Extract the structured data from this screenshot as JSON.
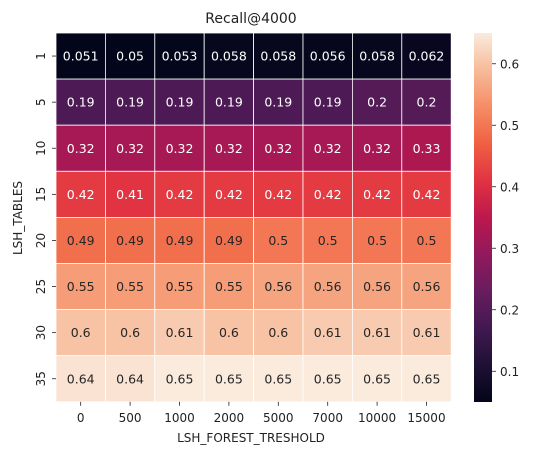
{
  "chart_data": {
    "type": "heatmap",
    "title": "Recall@4000",
    "xlabel": "LSH_FOREST_TRESHOLD",
    "ylabel": "LSH_TABLES",
    "x": [
      "0",
      "500",
      "1000",
      "2000",
      "5000",
      "7000",
      "10000",
      "15000"
    ],
    "y": [
      "1",
      "5",
      "10",
      "15",
      "20",
      "25",
      "30",
      "35"
    ],
    "values": [
      [
        0.051,
        0.05,
        0.053,
        0.058,
        0.058,
        0.056,
        0.058,
        0.062
      ],
      [
        0.19,
        0.19,
        0.19,
        0.19,
        0.19,
        0.19,
        0.2,
        0.2
      ],
      [
        0.32,
        0.32,
        0.32,
        0.32,
        0.32,
        0.32,
        0.32,
        0.33
      ],
      [
        0.42,
        0.41,
        0.42,
        0.42,
        0.42,
        0.42,
        0.42,
        0.42
      ],
      [
        0.49,
        0.49,
        0.49,
        0.49,
        0.5,
        0.5,
        0.5,
        0.5
      ],
      [
        0.55,
        0.55,
        0.55,
        0.55,
        0.56,
        0.56,
        0.56,
        0.56
      ],
      [
        0.6,
        0.6,
        0.61,
        0.6,
        0.6,
        0.61,
        0.61,
        0.61
      ],
      [
        0.64,
        0.64,
        0.65,
        0.65,
        0.65,
        0.65,
        0.65,
        0.65
      ]
    ],
    "colorbar": {
      "range": [
        0.05,
        0.65
      ],
      "ticks": [
        0.1,
        0.2,
        0.3,
        0.4,
        0.5,
        0.6
      ],
      "tick_labels": [
        "0.1",
        "0.2",
        "0.3",
        "0.4",
        "0.5",
        "0.6"
      ],
      "colormap": "rocket"
    },
    "grid": false,
    "cell_borders": true
  }
}
